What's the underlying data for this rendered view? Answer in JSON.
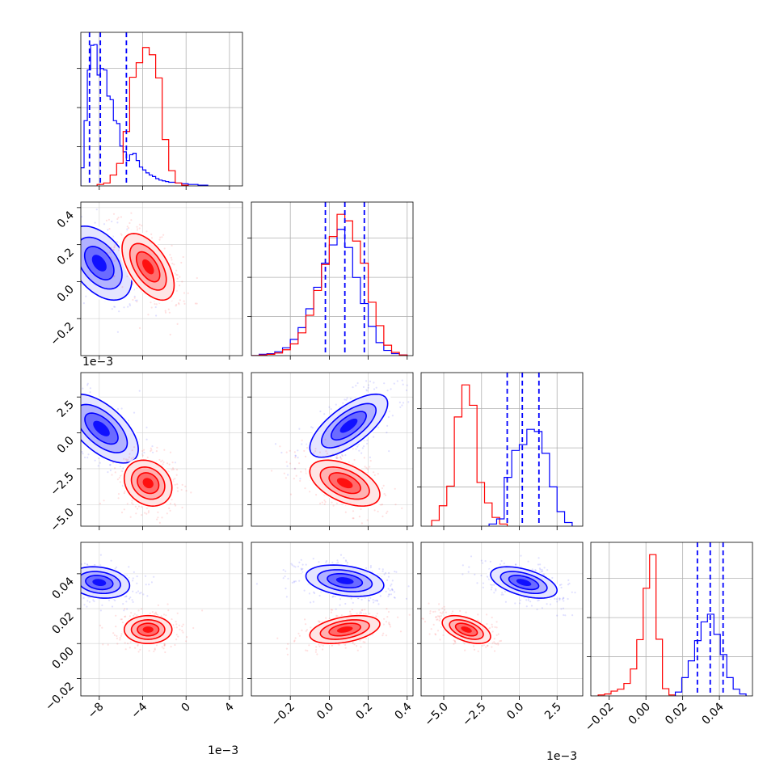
{
  "chart_data": {
    "type": "corner",
    "grid": true,
    "series": [
      {
        "name": "",
        "color": "#0000ff"
      },
      {
        "name": "",
        "color": "#ff0000"
      }
    ],
    "parameters": [
      {
        "range": [
          -0.0097,
          0.0052
        ],
        "ticks": [
          -0.008,
          -0.004,
          0.0,
          0.004
        ],
        "tick_labels": [
          "−8",
          "−4",
          "0",
          "4"
        ],
        "offset_label": "1e−3",
        "quantiles": [
          -0.0089,
          -0.0079,
          -0.0055
        ]
      },
      {
        "range": [
          -0.4,
          0.43
        ],
        "ticks": [
          -0.2,
          0.0,
          0.2,
          0.4
        ],
        "tick_labels": [
          "−0.2",
          "0.0",
          "0.2",
          "0.4"
        ],
        "offset_label": "",
        "quantiles": [
          -0.02,
          0.08,
          0.18
        ]
      },
      {
        "range": [
          -0.0065,
          0.0042
        ],
        "ticks": [
          -0.005,
          -0.0025,
          0.0,
          0.0025
        ],
        "tick_labels": [
          "−5.0",
          "−2.5",
          "0.0",
          "2.5"
        ],
        "offset_label": "1e−3",
        "quantiles": [
          -0.0008,
          0.0002,
          0.0013
        ]
      },
      {
        "range": [
          -0.03,
          0.058
        ],
        "ticks": [
          -0.02,
          0.0,
          0.02,
          0.04
        ],
        "tick_labels": [
          "−0.02",
          "0.00",
          "0.02",
          "0.04"
        ],
        "offset_label": "",
        "quantiles": [
          0.028,
          0.035,
          0.042
        ]
      }
    ],
    "histograms": [
      {
        "param": 0,
        "series": [
          {
            "color": "#0000ff",
            "edges": [
              -0.0097,
              -0.0094,
              -0.0091,
              -0.0088,
              -0.0085,
              -0.0082,
              -0.0079,
              -0.0076,
              -0.0073,
              -0.007,
              -0.0067,
              -0.0064,
              -0.0061,
              -0.0058,
              -0.0055,
              -0.0052,
              -0.0049,
              -0.0046,
              -0.0043,
              -0.004,
              -0.0037,
              -0.0034,
              -0.0031,
              -0.0028,
              -0.0025,
              -0.0022,
              -0.0019,
              -0.0016,
              -0.0013,
              -0.001,
              -0.0007,
              -0.0004,
              -0.0001,
              0.0002,
              0.0005,
              0.0008,
              0.0011,
              0.0014,
              0.0017,
              0.002
            ],
            "counts": [
              25,
              90,
              160,
              194,
              195,
              153,
              162,
              160,
              124,
              119,
              90,
              86,
              55,
              47,
              35,
              43,
              45,
              35,
              26,
              22,
              18,
              15,
              13,
              10,
              8,
              7,
              6,
              5,
              5,
              4,
              4,
              3,
              3,
              2,
              2,
              2,
              1,
              1,
              1
            ]
          },
          {
            "color": "#ff0000",
            "edges": [
              -0.0082,
              -0.0076,
              -0.007,
              -0.0064,
              -0.0058,
              -0.0052,
              -0.0046,
              -0.004,
              -0.0034,
              -0.0028,
              -0.0022,
              -0.0016,
              -0.001,
              -0.0004,
              0.0002
            ],
            "counts": [
              2,
              4,
              15,
              31,
              75,
              150,
              170,
              191,
              181,
              149,
              64,
              21,
              4,
              1
            ]
          }
        ]
      },
      {
        "param": 1,
        "series": [
          {
            "color": "#0000ff",
            "edges": [
              -0.4,
              -0.36,
              -0.32,
              -0.28,
              -0.24,
              -0.2,
              -0.16,
              -0.12,
              -0.08,
              -0.04,
              0.0,
              0.04,
              0.08,
              0.12,
              0.16,
              0.2,
              0.24,
              0.28,
              0.32,
              0.36,
              0.4
            ],
            "counts": [
              0,
              2,
              3,
              6,
              12,
              25,
              43,
              72,
              105,
              142,
              170,
              194,
              166,
              120,
              80,
              45,
              20,
              8,
              3,
              1
            ]
          },
          {
            "color": "#ff0000",
            "edges": [
              -0.4,
              -0.36,
              -0.32,
              -0.28,
              -0.24,
              -0.2,
              -0.16,
              -0.12,
              -0.08,
              -0.04,
              0.0,
              0.04,
              0.08,
              0.12,
              0.16,
              0.2,
              0.24,
              0.28,
              0.32,
              0.36,
              0.4
            ],
            "counts": [
              0,
              1,
              2,
              4,
              9,
              18,
              35,
              62,
              100,
              140,
              183,
              217,
              207,
              176,
              142,
              82,
              46,
              16,
              5,
              1
            ]
          }
        ]
      },
      {
        "param": 2,
        "series": [
          {
            "color": "#ff0000",
            "edges": [
              -0.0058,
              -0.0053,
              -0.0048,
              -0.0043,
              -0.0038,
              -0.0033,
              -0.0028,
              -0.0023,
              -0.0018,
              -0.0013,
              -0.0008
            ],
            "counts": [
              8,
              28,
              55,
              150,
              194,
              166,
              60,
              32,
              12,
              3
            ]
          },
          {
            "color": "#0000ff",
            "edges": [
              -0.002,
              -0.0015,
              -0.001,
              -0.0005,
              0.0,
              0.0005,
              0.001,
              0.0015,
              0.002,
              0.0025,
              0.003,
              0.0035
            ],
            "counts": [
              3,
              10,
              67,
              104,
              112,
              133,
              130,
              100,
              54,
              20,
              5
            ]
          }
        ]
      },
      {
        "param": 3,
        "series": [
          {
            "color": "#ff0000",
            "edges": [
              -0.026,
              -0.0225,
              -0.019,
              -0.0155,
              -0.012,
              -0.0085,
              -0.005,
              -0.0015,
              0.002,
              0.0055,
              0.009,
              0.0125,
              0.016
            ],
            "counts": [
              2,
              4,
              10,
              14,
              26,
              56,
              117,
              224,
              294,
              118,
              15,
              2
            ]
          },
          {
            "color": "#0000ff",
            "edges": [
              0.016,
              0.0195,
              0.023,
              0.0265,
              0.03,
              0.0335,
              0.037,
              0.0405,
              0.044,
              0.0475,
              0.051,
              0.0545
            ],
            "counts": [
              8,
              38,
              73,
              115,
              154,
              170,
              128,
              86,
              38,
              14,
              4
            ]
          }
        ]
      }
    ],
    "pairs": [
      {
        "x": 0,
        "y": 1,
        "series": [
          {
            "color": "#0000ff",
            "mean": [
              -0.008,
              0.1
            ],
            "sd": [
              0.0015,
              0.1
            ],
            "rho": -0.45
          },
          {
            "color": "#ff0000",
            "mean": [
              -0.0035,
              0.08
            ],
            "sd": [
              0.0012,
              0.09
            ],
            "rho": -0.55
          }
        ]
      },
      {
        "x": 0,
        "y": 2,
        "series": [
          {
            "color": "#0000ff",
            "mean": [
              -0.0078,
              0.0003
            ],
            "sd": [
              0.0017,
              0.0012
            ],
            "rho": -0.6
          },
          {
            "color": "#ff0000",
            "mean": [
              -0.0035,
              -0.0035
            ],
            "sd": [
              0.0011,
              0.0008
            ],
            "rho": -0.2
          }
        ]
      },
      {
        "x": 0,
        "y": 3,
        "series": [
          {
            "color": "#0000ff",
            "mean": [
              -0.008,
              0.035
            ],
            "sd": [
              0.0014,
              0.0045
            ],
            "rho": -0.2
          },
          {
            "color": "#ff0000",
            "mean": [
              -0.0035,
              0.008
            ],
            "sd": [
              0.0011,
              0.004
            ],
            "rho": 0.0
          }
        ]
      },
      {
        "x": 1,
        "y": 2,
        "series": [
          {
            "color": "#0000ff",
            "mean": [
              0.1,
              0.0005
            ],
            "sd": [
              0.1,
              0.0011
            ],
            "rho": 0.7
          },
          {
            "color": "#ff0000",
            "mean": [
              0.08,
              -0.0035
            ],
            "sd": [
              0.09,
              0.0008
            ],
            "rho": -0.5
          }
        ]
      },
      {
        "x": 1,
        "y": 3,
        "series": [
          {
            "color": "#0000ff",
            "mean": [
              0.08,
              0.036
            ],
            "sd": [
              0.1,
              0.0045
            ],
            "rho": -0.3
          },
          {
            "color": "#ff0000",
            "mean": [
              0.08,
              0.008
            ],
            "sd": [
              0.09,
              0.004
            ],
            "rho": 0.4
          }
        ]
      },
      {
        "x": 2,
        "y": 3,
        "series": [
          {
            "color": "#0000ff",
            "mean": [
              0.0003,
              0.035
            ],
            "sd": [
              0.0011,
              0.0045
            ],
            "rho": -0.5
          },
          {
            "color": "#ff0000",
            "mean": [
              -0.0035,
              0.008
            ],
            "sd": [
              0.0008,
              0.004
            ],
            "rho": -0.5
          }
        ]
      }
    ]
  }
}
